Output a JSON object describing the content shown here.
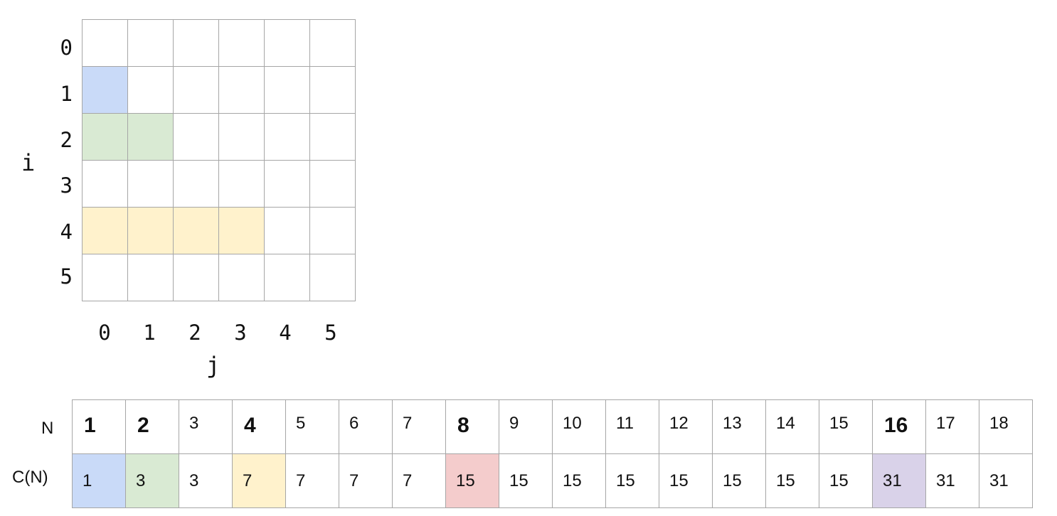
{
  "grid": {
    "i_axis_label": "i",
    "j_axis_label": "j",
    "row_labels": [
      "0",
      "1",
      "2",
      "3",
      "4",
      "5"
    ],
    "col_labels": [
      "0",
      "1",
      "2",
      "3",
      "4",
      "5"
    ],
    "highlights": [
      {
        "row": 1,
        "cols": 1,
        "color": "#c9daf8"
      },
      {
        "row": 2,
        "cols": 2,
        "color": "#d9ead3"
      },
      {
        "row": 4,
        "cols": 4,
        "color": "#fff2cc"
      }
    ]
  },
  "sequence": {
    "n_label": "N",
    "c_label": "C(N)",
    "n_values": [
      "1",
      "2",
      "3",
      "4",
      "5",
      "6",
      "7",
      "8",
      "9",
      "10",
      "11",
      "12",
      "13",
      "14",
      "15",
      "16",
      "17",
      "18"
    ],
    "c_values": [
      "1",
      "3",
      "3",
      "7",
      "7",
      "7",
      "7",
      "15",
      "15",
      "15",
      "15",
      "15",
      "15",
      "15",
      "15",
      "31",
      "31",
      "31"
    ],
    "bold_n": [
      0,
      1,
      3,
      7,
      15
    ],
    "c_colors": {
      "0": "#c9daf8",
      "1": "#d9ead3",
      "3": "#fff2cc",
      "7": "#f4cccc",
      "15": "#d9d2e9"
    }
  }
}
